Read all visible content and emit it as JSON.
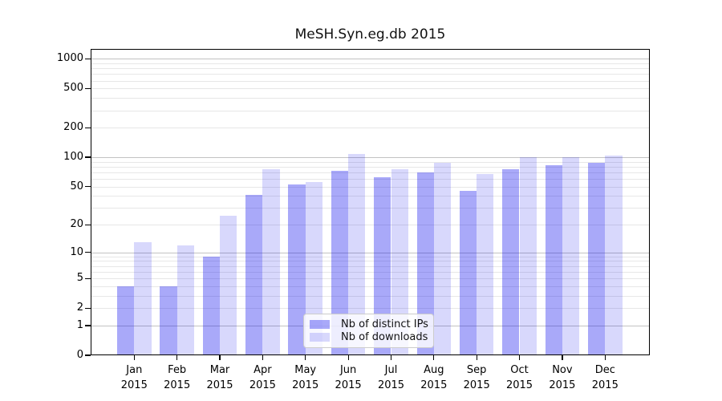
{
  "figure": {
    "background": "#ffffff"
  },
  "chart_data": {
    "type": "bar",
    "title": "MeSH.Syn.eg.db 2015",
    "categories": [
      "Jan 2015",
      "Feb 2015",
      "Mar 2015",
      "Apr 2015",
      "May 2015",
      "Jun 2015",
      "Jul 2015",
      "Aug 2015",
      "Sep 2015",
      "Oct 2015",
      "Nov 2015",
      "Dec 2015"
    ],
    "series": [
      {
        "name": "Nb of distinct IPs",
        "color": "rgba(8,8,238,0.35)",
        "values": [
          4,
          4,
          9,
          41,
          53,
          73,
          63,
          70,
          45,
          76,
          83,
          87
        ]
      },
      {
        "name": "Nb of downloads",
        "color": "rgba(8,8,238,0.155)",
        "values": [
          13,
          12,
          25,
          75,
          56,
          108,
          75,
          88,
          67,
          100,
          100,
          104
        ]
      }
    ],
    "xlabel": "",
    "ylabel": "",
    "yscale": "log1p",
    "y_ticks": [
      0,
      1,
      2,
      5,
      10,
      20,
      50,
      100,
      200,
      500,
      1000
    ],
    "ylim": [
      0,
      1213
    ],
    "grid": true,
    "legend_position": "lower-center-inside"
  },
  "colors": {
    "major_grid": "#c2c2c2",
    "minor_grid": "#e7e7e7",
    "spine": "#000000",
    "tick_label": "#000000",
    "legend_border": "#cccccc",
    "legend_background": "rgba(255,255,255,0.8)"
  }
}
